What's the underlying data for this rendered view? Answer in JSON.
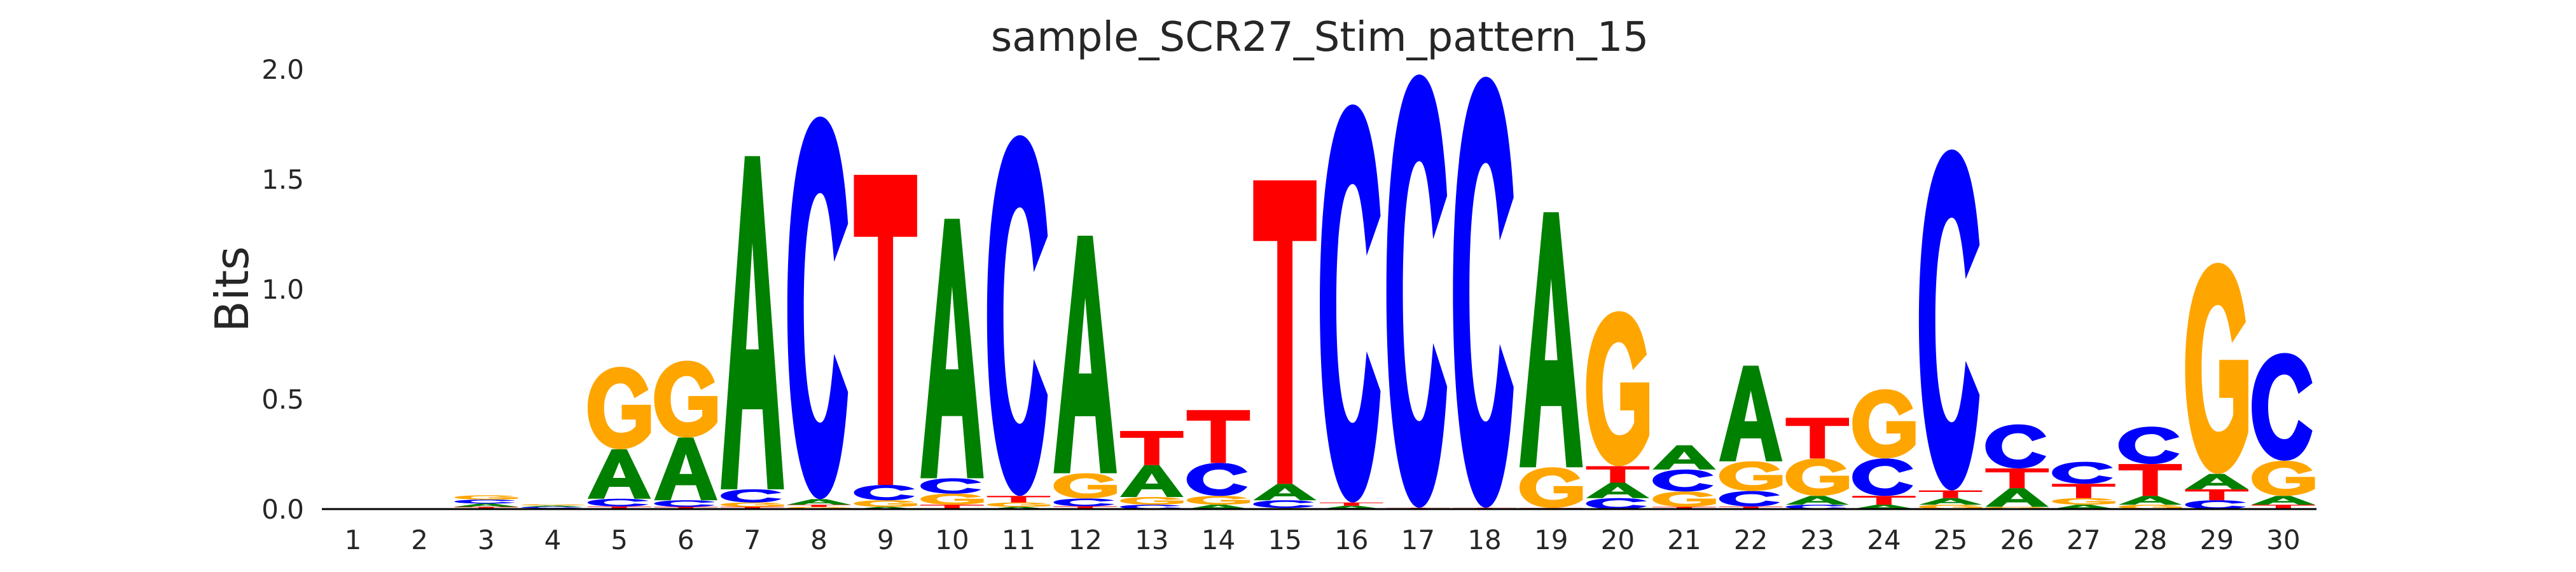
{
  "chart_data": {
    "type": "sequence-logo",
    "title": "sample_SCR27_Stim_pattern_15",
    "ylabel": "Bits",
    "xlabel": "",
    "ylim": [
      0,
      2.0
    ],
    "yticks": [
      "0.0",
      "0.5",
      "1.0",
      "1.5",
      "2.0"
    ],
    "ytick_values": [
      0,
      0.5,
      1.0,
      1.5,
      2.0
    ],
    "grid": false,
    "colors": {
      "A": "#008000",
      "C": "#0000ff",
      "G": "#ffa500",
      "T": "#ff0000"
    },
    "positions": [
      {
        "pos": "1",
        "stack": []
      },
      {
        "pos": "2",
        "stack": []
      },
      {
        "pos": "3",
        "stack": [
          [
            "T",
            0.01
          ],
          [
            "A",
            0.015
          ],
          [
            "C",
            0.018
          ],
          [
            "G",
            0.02
          ]
        ]
      },
      {
        "pos": "4",
        "stack": [
          [
            "T",
            0.004
          ],
          [
            "C",
            0.006
          ],
          [
            "A",
            0.006
          ],
          [
            "G",
            0.006
          ]
        ]
      },
      {
        "pos": "5",
        "stack": [
          [
            "T",
            0.012
          ],
          [
            "C",
            0.035
          ],
          [
            "A",
            0.225
          ],
          [
            "G",
            0.375
          ]
        ]
      },
      {
        "pos": "6",
        "stack": [
          [
            "T",
            0.01
          ],
          [
            "C",
            0.03
          ],
          [
            "A",
            0.285
          ],
          [
            "G",
            0.35
          ]
        ]
      },
      {
        "pos": "7",
        "stack": [
          [
            "T",
            0.01
          ],
          [
            "G",
            0.02
          ],
          [
            "C",
            0.06
          ],
          [
            "A",
            1.515
          ]
        ]
      },
      {
        "pos": "8",
        "stack": [
          [
            "G",
            0.01
          ],
          [
            "T",
            0.01
          ],
          [
            "A",
            0.025
          ],
          [
            "C",
            1.74
          ]
        ]
      },
      {
        "pos": "9",
        "stack": [
          [
            "A",
            0.01
          ],
          [
            "G",
            0.03
          ],
          [
            "C",
            0.07
          ],
          [
            "T",
            1.41
          ]
        ]
      },
      {
        "pos": "10",
        "stack": [
          [
            "T",
            0.02
          ],
          [
            "G",
            0.05
          ],
          [
            "C",
            0.07
          ],
          [
            "A",
            1.18
          ]
        ]
      },
      {
        "pos": "11",
        "stack": [
          [
            "A",
            0.01
          ],
          [
            "G",
            0.02
          ],
          [
            "T",
            0.03
          ],
          [
            "C",
            1.64
          ]
        ]
      },
      {
        "pos": "12",
        "stack": [
          [
            "T",
            0.013
          ],
          [
            "C",
            0.035
          ],
          [
            "G",
            0.115
          ],
          [
            "A",
            1.08
          ]
        ]
      },
      {
        "pos": "13",
        "stack": [
          [
            "C",
            0.02
          ],
          [
            "G",
            0.035
          ],
          [
            "A",
            0.145
          ],
          [
            "T",
            0.155
          ]
        ]
      },
      {
        "pos": "14",
        "stack": [
          [
            "A",
            0.02
          ],
          [
            "G",
            0.04
          ],
          [
            "C",
            0.15
          ],
          [
            "T",
            0.24
          ]
        ]
      },
      {
        "pos": "15",
        "stack": [
          [
            "G",
            0.005
          ],
          [
            "C",
            0.035
          ],
          [
            "A",
            0.075
          ],
          [
            "T",
            1.38
          ]
        ]
      },
      {
        "pos": "16",
        "stack": [
          [
            "A",
            0.015
          ],
          [
            "T",
            0.015
          ],
          [
            "C",
            1.81
          ]
        ]
      },
      {
        "pos": "17",
        "stack": [
          [
            "A",
            0.003
          ],
          [
            "T",
            0.003
          ],
          [
            "C",
            1.97
          ]
        ]
      },
      {
        "pos": "18",
        "stack": [
          [
            "A",
            0.003
          ],
          [
            "T",
            0.003
          ],
          [
            "C",
            1.96
          ]
        ]
      },
      {
        "pos": "19",
        "stack": [
          [
            "T",
            0.005
          ],
          [
            "G",
            0.185
          ],
          [
            "A",
            1.16
          ]
        ]
      },
      {
        "pos": "20",
        "stack": [
          [
            "C",
            0.05
          ],
          [
            "A",
            0.07
          ],
          [
            "T",
            0.075
          ],
          [
            "G",
            0.705
          ]
        ]
      },
      {
        "pos": "21",
        "stack": [
          [
            "T",
            0.01
          ],
          [
            "G",
            0.07
          ],
          [
            "C",
            0.1
          ],
          [
            "A",
            0.11
          ]
        ]
      },
      {
        "pos": "22",
        "stack": [
          [
            "T",
            0.012
          ],
          [
            "C",
            0.07
          ],
          [
            "G",
            0.135
          ],
          [
            "A",
            0.435
          ]
        ]
      },
      {
        "pos": "23",
        "stack": [
          [
            "C",
            0.02
          ],
          [
            "A",
            0.04
          ],
          [
            "G",
            0.17
          ],
          [
            "T",
            0.185
          ]
        ]
      },
      {
        "pos": "24",
        "stack": [
          [
            "A",
            0.02
          ],
          [
            "T",
            0.04
          ],
          [
            "C",
            0.17
          ],
          [
            "G",
            0.315
          ]
        ]
      },
      {
        "pos": "25",
        "stack": [
          [
            "G",
            0.02
          ],
          [
            "A",
            0.03
          ],
          [
            "T",
            0.035
          ],
          [
            "C",
            1.55
          ]
        ]
      },
      {
        "pos": "26",
        "stack": [
          [
            "G",
            0.01
          ],
          [
            "A",
            0.085
          ],
          [
            "T",
            0.09
          ],
          [
            "C",
            0.2
          ]
        ]
      },
      {
        "pos": "27",
        "stack": [
          [
            "A",
            0.02
          ],
          [
            "G",
            0.03
          ],
          [
            "T",
            0.065
          ],
          [
            "C",
            0.1
          ]
        ]
      },
      {
        "pos": "28",
        "stack": [
          [
            "G",
            0.02
          ],
          [
            "A",
            0.04
          ],
          [
            "T",
            0.145
          ],
          [
            "C",
            0.17
          ]
        ]
      },
      {
        "pos": "29",
        "stack": [
          [
            "C",
            0.04
          ],
          [
            "T",
            0.05
          ],
          [
            "A",
            0.07
          ],
          [
            "G",
            0.96
          ]
        ]
      },
      {
        "pos": "30",
        "stack": [
          [
            "T",
            0.02
          ],
          [
            "A",
            0.04
          ],
          [
            "G",
            0.16
          ],
          [
            "C",
            0.49
          ]
        ]
      }
    ]
  }
}
